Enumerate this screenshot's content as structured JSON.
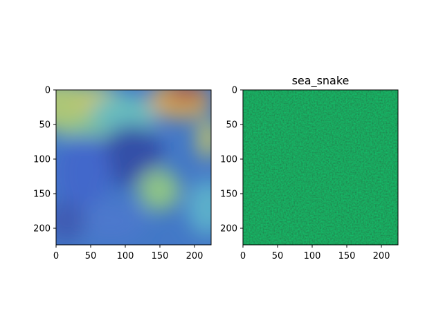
{
  "chart_data": [
    {
      "type": "heatmap",
      "title": "",
      "content": "image",
      "colormap": "jet",
      "xlim": [
        0,
        224
      ],
      "ylim": [
        224,
        0
      ],
      "xticks": [
        0,
        50,
        100,
        150,
        200
      ],
      "yticks": [
        0,
        50,
        100,
        150,
        200
      ],
      "xtick_labels": [
        "0",
        "50",
        "100",
        "150",
        "200"
      ],
      "ytick_labels": [
        "0",
        "50",
        "100",
        "150",
        "200"
      ],
      "grid": false
    },
    {
      "type": "heatmap",
      "title": "sea_snake",
      "content": "image",
      "colormap": "green",
      "xlim": [
        0,
        224
      ],
      "ylim": [
        224,
        0
      ],
      "xticks": [
        0,
        50,
        100,
        150,
        200
      ],
      "yticks": [
        0,
        50,
        100,
        150,
        200
      ],
      "xtick_labels": [
        "0",
        "50",
        "100",
        "150",
        "200"
      ],
      "ytick_labels": [
        "0",
        "50",
        "100",
        "150",
        "200"
      ],
      "grid": false
    }
  ]
}
